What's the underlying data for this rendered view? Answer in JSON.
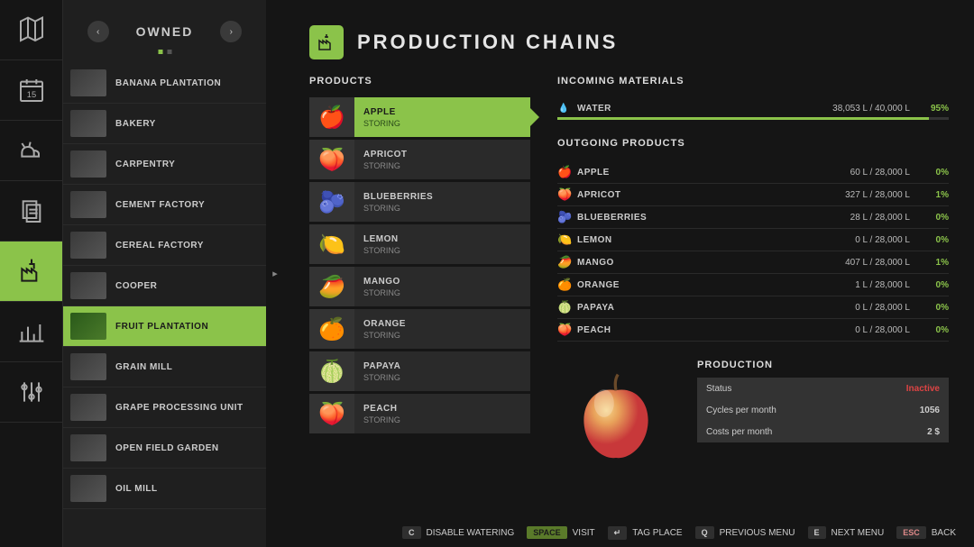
{
  "sidebar": {
    "title": "OWNED",
    "items": [
      {
        "label": "BANANA PLANTATION",
        "active": false
      },
      {
        "label": "BAKERY",
        "active": false
      },
      {
        "label": "CARPENTRY",
        "active": false
      },
      {
        "label": "CEMENT FACTORY",
        "active": false
      },
      {
        "label": "CEREAL FACTORY",
        "active": false
      },
      {
        "label": "COOPER",
        "active": false
      },
      {
        "label": "FRUIT PLANTATION",
        "active": true
      },
      {
        "label": "GRAIN MILL",
        "active": false
      },
      {
        "label": "GRAPE PROCESSING UNIT",
        "active": false
      },
      {
        "label": "OPEN FIELD GARDEN",
        "active": false
      },
      {
        "label": "OIL MILL",
        "active": false
      }
    ]
  },
  "header": {
    "title": "PRODUCTION CHAINS"
  },
  "products": {
    "title": "PRODUCTS",
    "items": [
      {
        "name": "APPLE",
        "status": "STORING",
        "emoji": "🍎",
        "active": true
      },
      {
        "name": "APRICOT",
        "status": "STORING",
        "emoji": "🍑",
        "active": false
      },
      {
        "name": "BLUEBERRIES",
        "status": "STORING",
        "emoji": "🫐",
        "active": false
      },
      {
        "name": "LEMON",
        "status": "STORING",
        "emoji": "🍋",
        "active": false
      },
      {
        "name": "MANGO",
        "status": "STORING",
        "emoji": "🥭",
        "active": false
      },
      {
        "name": "ORANGE",
        "status": "STORING",
        "emoji": "🍊",
        "active": false
      },
      {
        "name": "PAPAYA",
        "status": "STORING",
        "emoji": "🍈",
        "active": false
      },
      {
        "name": "PEACH",
        "status": "STORING",
        "emoji": "🍑",
        "active": false
      }
    ]
  },
  "incoming": {
    "title": "INCOMING MATERIALS",
    "items": [
      {
        "icon": "💧",
        "name": "WATER",
        "value": "38,053 L / 40,000 L",
        "pct": "95%",
        "barPct": 95
      }
    ]
  },
  "outgoing": {
    "title": "OUTGOING PRODUCTS",
    "items": [
      {
        "icon": "🍎",
        "name": "APPLE",
        "value": "60 L / 28,000 L",
        "pct": "0%"
      },
      {
        "icon": "🍑",
        "name": "APRICOT",
        "value": "327 L / 28,000 L",
        "pct": "1%"
      },
      {
        "icon": "🫐",
        "name": "BLUEBERRIES",
        "value": "28 L / 28,000 L",
        "pct": "0%"
      },
      {
        "icon": "🍋",
        "name": "LEMON",
        "value": "0 L / 28,000 L",
        "pct": "0%"
      },
      {
        "icon": "🥭",
        "name": "MANGO",
        "value": "407 L / 28,000 L",
        "pct": "1%"
      },
      {
        "icon": "🍊",
        "name": "ORANGE",
        "value": "1 L / 28,000 L",
        "pct": "0%"
      },
      {
        "icon": "🍈",
        "name": "PAPAYA",
        "value": "0 L / 28,000 L",
        "pct": "0%"
      },
      {
        "icon": "🍑",
        "name": "PEACH",
        "value": "0 L / 28,000 L",
        "pct": "0%"
      }
    ]
  },
  "production": {
    "title": "PRODUCTION",
    "rows": [
      {
        "label": "Status",
        "value": "Inactive",
        "cls": "inactive"
      },
      {
        "label": "Cycles per month",
        "value": "1056",
        "cls": ""
      },
      {
        "label": "Costs per month",
        "value": "2 $",
        "cls": ""
      }
    ]
  },
  "footer": {
    "items": [
      {
        "key": "C",
        "keyCls": "",
        "label": "DISABLE WATERING"
      },
      {
        "key": "SPACE",
        "keyCls": "g",
        "label": "VISIT"
      },
      {
        "key": "↵",
        "keyCls": "",
        "label": "TAG PLACE"
      },
      {
        "key": "Q",
        "keyCls": "",
        "label": "PREVIOUS MENU"
      },
      {
        "key": "E",
        "keyCls": "",
        "label": "NEXT MENU"
      },
      {
        "key": "ESC",
        "keyCls": "esc",
        "label": "BACK"
      }
    ]
  }
}
